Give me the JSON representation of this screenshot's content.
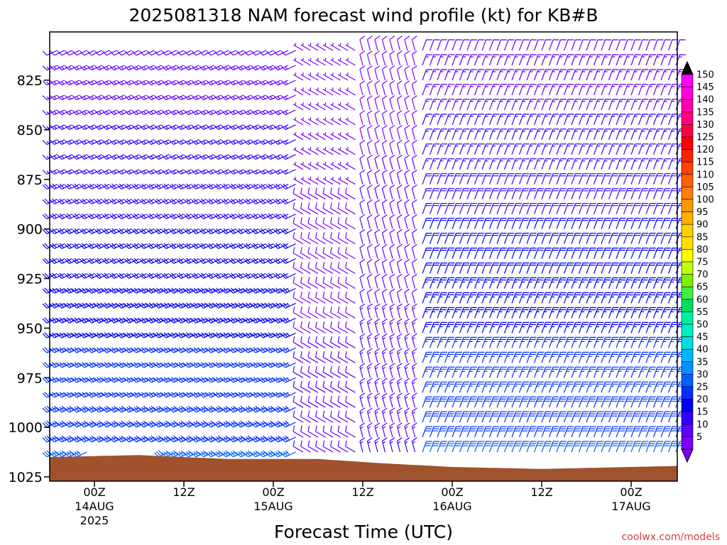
{
  "chart_data": {
    "type": "wind-barb-time-height",
    "title": "2025081318 NAM forecast wind profile (kt) for KB#B",
    "xlabel": "Forecast Time (UTC)",
    "credit": "coolwx.com/models",
    "y_axis": {
      "quantity": "pressure (hPa)",
      "ticks": [
        825,
        850,
        875,
        900,
        925,
        950,
        975,
        1000,
        1025
      ],
      "range": [
        803,
        1028
      ],
      "inverted": true
    },
    "x_axis": {
      "quantity": "forecast time (UTC)",
      "range": [
        "2025-08-13T18:00Z",
        "2025-08-17T12:00Z"
      ],
      "ticks": [
        {
          "time": "2025-08-14T00:00Z",
          "label": "00Z",
          "date": "14AUG",
          "year": "2025"
        },
        {
          "time": "2025-08-14T12:00Z",
          "label": "12Z",
          "date": "",
          "year": ""
        },
        {
          "time": "2025-08-15T00:00Z",
          "label": "00Z",
          "date": "15AUG",
          "year": ""
        },
        {
          "time": "2025-08-15T12:00Z",
          "label": "12Z",
          "date": "",
          "year": ""
        },
        {
          "time": "2025-08-16T00:00Z",
          "label": "00Z",
          "date": "16AUG",
          "year": ""
        },
        {
          "time": "2025-08-16T12:00Z",
          "label": "12Z",
          "date": "",
          "year": ""
        },
        {
          "time": "2025-08-17T00:00Z",
          "label": "00Z",
          "date": "17AUG",
          "year": ""
        }
      ]
    },
    "barb_time_step_hours": 1,
    "barb_pressure_levels": [
      810,
      817.5,
      825,
      832.5,
      840,
      847.5,
      855,
      862.5,
      870,
      877.5,
      885,
      892.5,
      900,
      907.5,
      915,
      922.5,
      930,
      937.5,
      945,
      952.5,
      960,
      967.5,
      975,
      982.5,
      990,
      997.5,
      1005,
      1012.5
    ],
    "wind_regimes": [
      {
        "hours_from": 0,
        "hours_to": 34,
        "direction_deg": 245,
        "speed_kt_upper": 12,
        "speed_kt_lower": 30
      },
      {
        "hours_from": 34,
        "hours_to": 42,
        "direction_deg": 300,
        "speed_kt_upper": 5,
        "speed_kt_lower": 12
      },
      {
        "hours_from": 42,
        "hours_to": 50,
        "direction_deg": 345,
        "speed_kt_upper": 8,
        "speed_kt_lower": 15
      },
      {
        "hours_from": 50,
        "hours_to": 92,
        "direction_deg": 20,
        "speed_kt_upper": 12,
        "speed_kt_lower": 30
      }
    ],
    "terrain": {
      "color": "#a0522d",
      "surface_pressure": [
        {
          "time": "2025-08-13T18:00Z",
          "p": 1015
        },
        {
          "time": "2025-08-14T06:00Z",
          "p": 1014
        },
        {
          "time": "2025-08-14T18:00Z",
          "p": 1016
        },
        {
          "time": "2025-08-15T06:00Z",
          "p": 1016
        },
        {
          "time": "2025-08-15T14:00Z",
          "p": 1018
        },
        {
          "time": "2025-08-16T00:00Z",
          "p": 1020
        },
        {
          "time": "2025-08-16T12:00Z",
          "p": 1021
        },
        {
          "time": "2025-08-17T00:00Z",
          "p": 1020
        },
        {
          "time": "2025-08-17T12:00Z",
          "p": 1019
        }
      ]
    },
    "colorbar": {
      "values": [
        5,
        10,
        15,
        20,
        25,
        30,
        35,
        40,
        45,
        50,
        55,
        60,
        65,
        70,
        75,
        80,
        85,
        90,
        95,
        100,
        105,
        110,
        115,
        120,
        125,
        130,
        135,
        140,
        145,
        150
      ],
      "colors": [
        "#8000ff",
        "#6000ff",
        "#3000ff",
        "#0000f0",
        "#0030ff",
        "#0060ff",
        "#0090ff",
        "#00b8ff",
        "#00e0e0",
        "#00f0c0",
        "#00f0a0",
        "#00e060",
        "#40f040",
        "#80f000",
        "#c0ff00",
        "#ffff00",
        "#ffe000",
        "#ffd000",
        "#ffb000",
        "#ff9800",
        "#ff8000",
        "#ff6000",
        "#ff4000",
        "#ff2000",
        "#ff0000",
        "#ff0040",
        "#ff0080",
        "#ff00b0",
        "#ff00e0",
        "#ff00ff"
      ],
      "under_color": "#8000ff",
      "over_color": "#000000"
    }
  }
}
